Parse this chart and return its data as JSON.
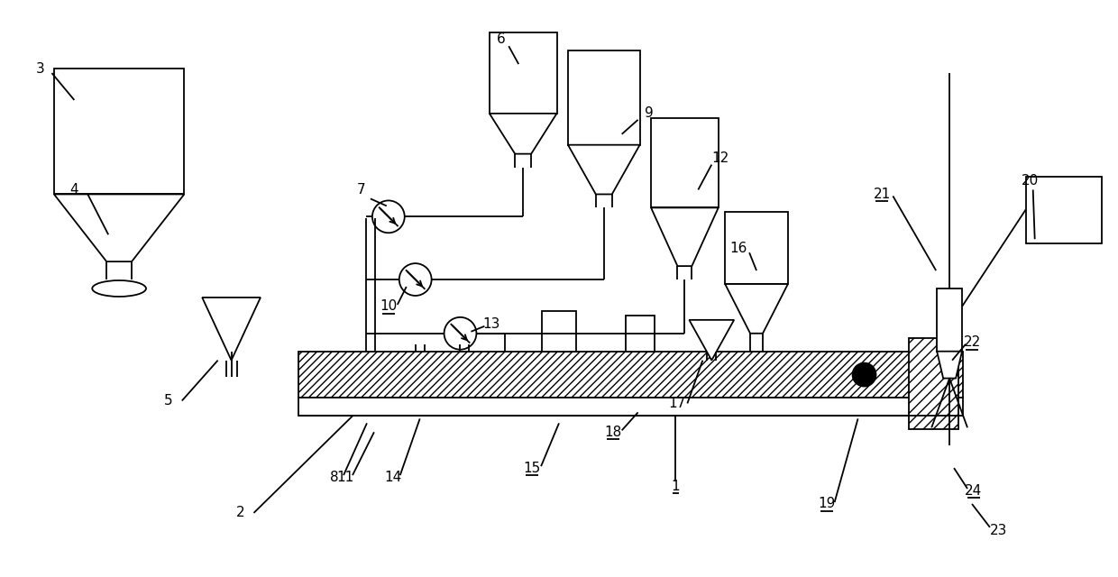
{
  "bg_color": "#ffffff",
  "line_color": "#000000",
  "fig_width": 12.4,
  "fig_height": 6.4
}
